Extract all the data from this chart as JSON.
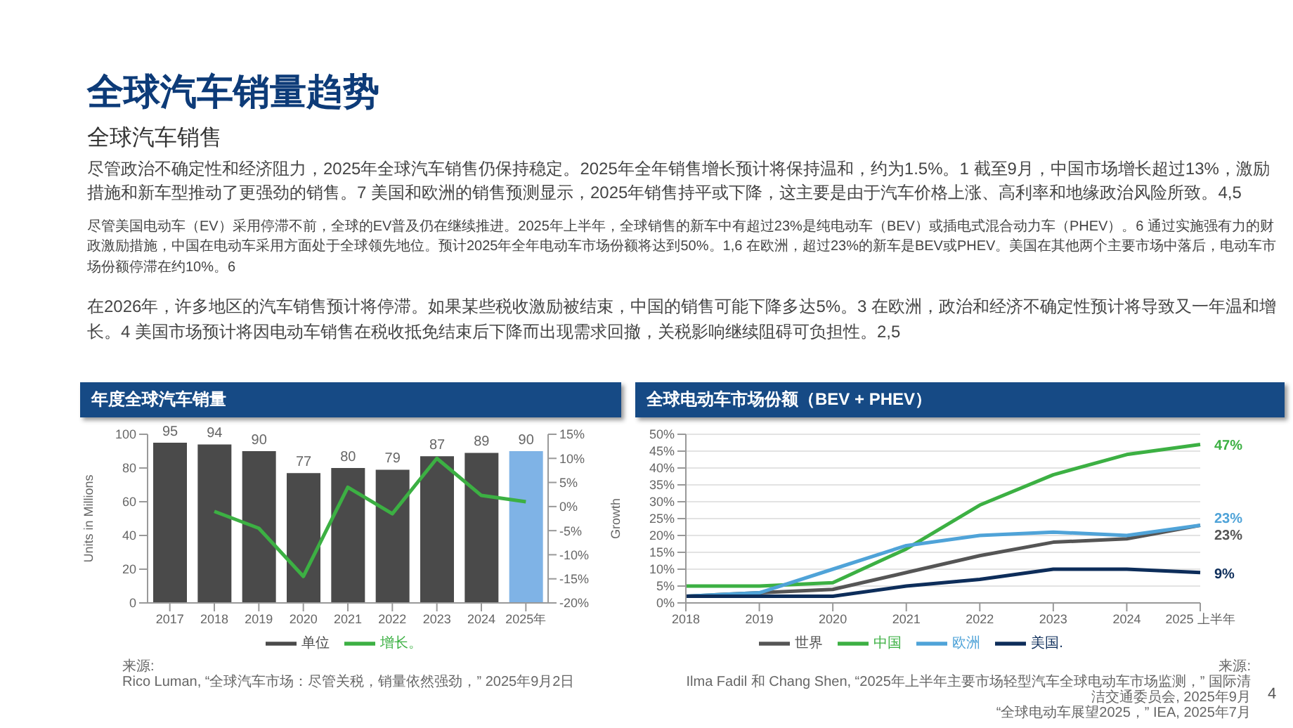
{
  "chart_data": [
    {
      "type": "other",
      "title": "全球汽车销量趋势",
      "subtitle": "全球汽车销售",
      "annotations": [
        "尽管政治不确定性和经济阻力，2025年全球汽车销售仍保持稳定。2025年全年销售增长预计将保持温和，约为1.5%。1 截至9月，中国市场增长超过13%，激励措施和新车型推动了更强劲的销售。7 美国和欧洲的销售预测显示，2025年销售持平或下降，这主要是由于汽车价格上涨、高利率和地缘政治风险所致。4,5",
        "尽管美国电动车（EV）采用停滞不前，全球的EV普及仍在继续推进。2025年上半年，全球销售的新车中有超过23%是纯电动车（BEV）或插电式混合动力车（PHEV）。6 通过实施强有力的财政激励措施，中国在电动车采用方面处于全球领先地位。预计2025年全年电动车市场份额将达到50%。1,6 在欧洲，超过23%的新车是BEV或PHEV。美国在其他两个主要市场中落后，电动车市场份额停滞在约10%。6",
        "在2026年，许多地区的汽车销售预计将停滞。如果某些税收激励被结束，中国的销售可能下降多达5%。3 在欧洲，政治和经济不确定性预计将导致又一年温和增长。4 美国市场预计将因电动车销售在税收抵免结束后下降而出现需求回撤，关税影响继续阻碍可负担性。2,5",
        "4"
      ]
    },
    {
      "type": "bar",
      "title": "年度全球汽车销量",
      "categories": [
        "2017",
        "2018",
        "2019",
        "2020",
        "2021",
        "2022",
        "2023",
        "2024",
        "2025年"
      ],
      "series": [
        {
          "name": "单位",
          "type": "bar",
          "colors": [
            "#4a4a4a",
            "#4a4a4a",
            "#4a4a4a",
            "#4a4a4a",
            "#4a4a4a",
            "#4a4a4a",
            "#4a4a4a",
            "#4a4a4a",
            "#7fb3e6"
          ],
          "values": [
            95,
            94,
            90,
            77,
            80,
            79,
            87,
            89,
            90
          ],
          "value_labels": [
            "95",
            "94",
            "90",
            "77",
            "80",
            "79",
            "87",
            "89",
            "90"
          ]
        },
        {
          "name": "增长。",
          "type": "line",
          "axis": "y2",
          "color": "#3cb043",
          "values": [
            null,
            -1,
            -4.5,
            -14.5,
            4,
            -1.5,
            10,
            2.3,
            1
          ]
        }
      ],
      "ylim": [
        0,
        100
      ],
      "yticks": [
        0,
        20,
        40,
        60,
        80,
        100
      ],
      "y2lim": [
        -20,
        15
      ],
      "y2ticks": [
        {
          "value": -20,
          "label": "-20%"
        },
        {
          "value": -15,
          "label": "-15%"
        },
        {
          "value": -10,
          "label": "-10%"
        },
        {
          "value": -5,
          "label": "-5%"
        },
        {
          "value": 0,
          "label": "0%"
        },
        {
          "value": 5,
          "label": "5%"
        },
        {
          "value": 10,
          "label": "10%"
        },
        {
          "value": 15,
          "label": "15%"
        }
      ],
      "ylabel": "Units in Millions",
      "y2label": "Growth",
      "legend": "bottom",
      "grid": false,
      "annotations": [
        "来源:",
        "Rico Luman, “全球汽车市场：尽管关税，销量依然强劲，” 2025年9月2日"
      ]
    },
    {
      "type": "line",
      "title": "全球电动车市场份额（BEV + PHEV）",
      "categories": [
        "2018",
        "2019",
        "2020",
        "2021",
        "2022",
        "2023",
        "2024",
        "2025 上半年"
      ],
      "series": [
        {
          "name": "世界",
          "color": "#555555",
          "values": [
            2,
            3,
            4,
            9,
            14,
            18,
            19,
            23
          ],
          "value_labels": [
            null,
            null,
            null,
            null,
            null,
            null,
            null,
            "23%"
          ]
        },
        {
          "name": "中国",
          "color": "#3cb043",
          "values": [
            5,
            5,
            6,
            16,
            29,
            38,
            44,
            47
          ],
          "value_labels": [
            null,
            null,
            null,
            null,
            null,
            null,
            null,
            "47%"
          ]
        },
        {
          "name": "欧洲",
          "color": "#4fa3d8",
          "values": [
            2,
            3,
            10,
            17,
            20,
            21,
            20,
            23
          ],
          "value_labels": [
            null,
            null,
            null,
            null,
            null,
            null,
            null,
            "23%"
          ]
        },
        {
          "name": "美国.",
          "color": "#0d2d5a",
          "values": [
            2,
            2,
            2,
            5,
            7,
            10,
            10,
            9
          ],
          "value_labels": [
            null,
            null,
            null,
            null,
            null,
            null,
            null,
            "9%"
          ]
        }
      ],
      "ylim": [
        0,
        50
      ],
      "yticks": [
        {
          "value": 0,
          "label": "0%"
        },
        {
          "value": 5,
          "label": "5%"
        },
        {
          "value": 10,
          "label": "10%"
        },
        {
          "value": 15,
          "label": "15%"
        },
        {
          "value": 20,
          "label": "20%"
        },
        {
          "value": 25,
          "label": "25%"
        },
        {
          "value": 30,
          "label": "30%"
        },
        {
          "value": 35,
          "label": "35%"
        },
        {
          "value": 40,
          "label": "40%"
        },
        {
          "value": 45,
          "label": "45%"
        },
        {
          "value": 50,
          "label": "50%"
        }
      ],
      "grid": "y",
      "legend": "bottom",
      "marker": "none",
      "annotations": [
        "来源:",
        "Ilma Fadil 和 Chang Shen, “2025年上半年主要市场轻型汽车全球电动车市场监测，” 国际清洁交通委员会, 2025年9月",
        "“全球电动车展望2025，” IEA, 2025年7月"
      ]
    }
  ]
}
